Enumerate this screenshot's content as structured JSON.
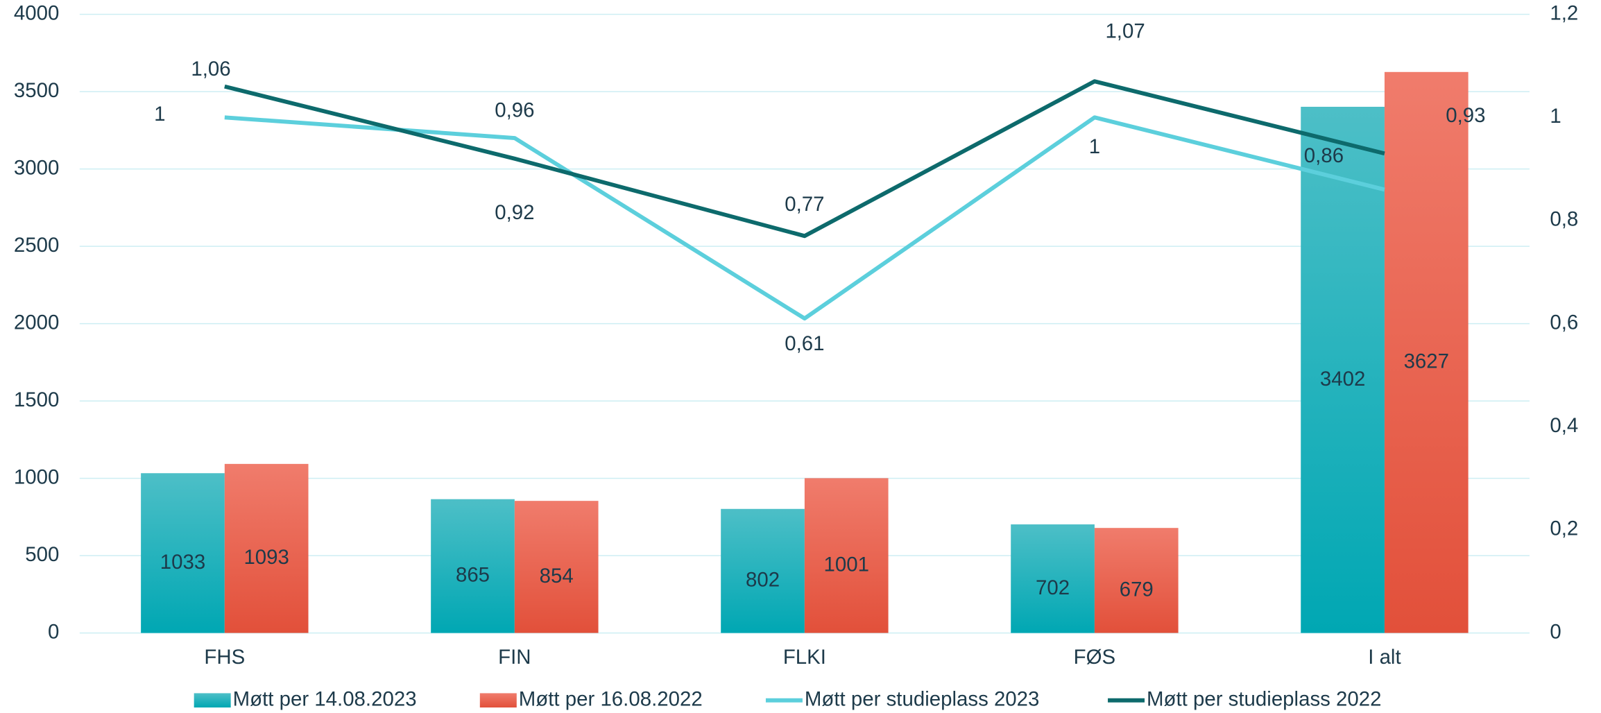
{
  "chart_data": {
    "type": "bar",
    "categories": [
      "FHS",
      "FIN",
      "FLKI",
      "FØS",
      "I alt"
    ],
    "series": [
      {
        "name": "Møtt per 14.08.2023",
        "type": "bar",
        "color": "#00adb8",
        "values": [
          1033,
          865,
          802,
          702,
          3402
        ]
      },
      {
        "name": "Møtt per 16.08.2022",
        "type": "bar",
        "color": "#ec5a43",
        "values": [
          1093,
          854,
          1001,
          679,
          3627
        ]
      },
      {
        "name": "Møtt per studieplass 2023",
        "type": "line",
        "axis": "y2",
        "color": "#5ccfdc",
        "values": [
          1,
          0.96,
          0.61,
          1,
          0.86
        ],
        "value_labels": [
          "1",
          "0,96",
          "0,61",
          "1",
          "0,86"
        ]
      },
      {
        "name": "Møtt per studieplass 2022",
        "type": "line",
        "axis": "y2",
        "color": "#0d6a6c",
        "values": [
          1.06,
          0.92,
          0.77,
          1.07,
          0.93
        ],
        "value_labels": [
          "1,06",
          "0,92",
          "0,77",
          "1,07",
          "0,93"
        ]
      }
    ],
    "ylim": [
      0,
      4000
    ],
    "yticks": [
      0,
      500,
      1000,
      1500,
      2000,
      2500,
      3000,
      3500,
      4000
    ],
    "y2lim": [
      0,
      1.2
    ],
    "y2ticks": [
      0,
      {
        "value": 0.2,
        "label": "0,2"
      },
      {
        "value": 0.4,
        "label": "0,4"
      },
      {
        "value": 0.6,
        "label": "0,6"
      },
      {
        "value": 0.8,
        "label": "0,8"
      },
      1,
      {
        "value": 1.2,
        "label": "1,2"
      }
    ],
    "grid": true,
    "legend": "bottom"
  }
}
